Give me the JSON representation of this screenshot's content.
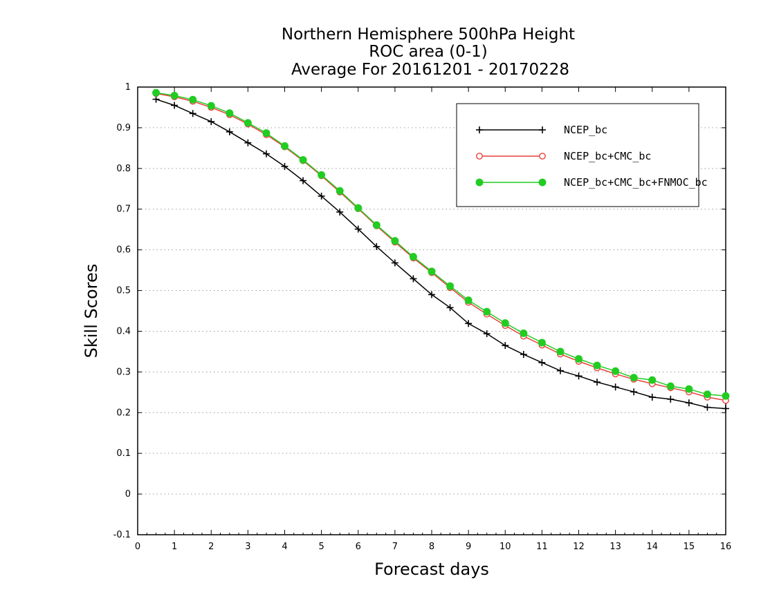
{
  "colors": {
    "background": "#ffffff",
    "axis": "#000000",
    "grid": "#9a9a9a"
  },
  "chart_data": {
    "type": "line",
    "title_lines": [
      "Northern Hemisphere 500hPa Height",
      "ROC area (0-1)",
      "Average For 20161201 - 20170228"
    ],
    "xlabel": "Forecast days",
    "ylabel": "Skill Scores",
    "xlim": [
      0,
      16
    ],
    "ylim": [
      -0.1,
      1
    ],
    "x_ticks": [
      0,
      1,
      2,
      3,
      4,
      5,
      6,
      7,
      8,
      9,
      10,
      11,
      12,
      13,
      14,
      15,
      16
    ],
    "y_ticks": [
      -0.1,
      0,
      0.1,
      0.2,
      0.3,
      0.4,
      0.5,
      0.6,
      0.7,
      0.8,
      0.9,
      1
    ],
    "y_tick_labels": [
      "-0.1",
      "0",
      "0.1",
      "0.2",
      "0.3",
      "0.4",
      "0.5",
      "0.6",
      "0.7",
      "0.8",
      "0.9",
      "1"
    ],
    "grid": "horizontal dotted",
    "legend_position": "top-right",
    "x": [
      0.5,
      1,
      1.5,
      2,
      2.5,
      3,
      3.5,
      4,
      4.5,
      5,
      5.5,
      6,
      6.5,
      7,
      7.5,
      8,
      8.5,
      9,
      9.5,
      10,
      10.5,
      11,
      11.5,
      12,
      12.5,
      13,
      13.5,
      14,
      14.5,
      15,
      15.5,
      16
    ],
    "series": [
      {
        "name": "NCEP_bc",
        "color": "#000000",
        "marker": "plus",
        "values": [
          0.97,
          0.955,
          0.935,
          0.915,
          0.89,
          0.863,
          0.836,
          0.805,
          0.77,
          0.732,
          0.693,
          0.651,
          0.608,
          0.568,
          0.529,
          0.49,
          0.458,
          0.419,
          0.394,
          0.365,
          0.343,
          0.323,
          0.303,
          0.29,
          0.275,
          0.263,
          0.251,
          0.238,
          0.233,
          0.224,
          0.213,
          0.21
        ]
      },
      {
        "name": "NCEP_bc+CMC_bc",
        "color": "#e8413c",
        "marker": "open-circle",
        "values": [
          0.984,
          0.976,
          0.965,
          0.95,
          0.932,
          0.909,
          0.883,
          0.853,
          0.819,
          0.782,
          0.742,
          0.701,
          0.659,
          0.619,
          0.58,
          0.544,
          0.507,
          0.471,
          0.442,
          0.414,
          0.388,
          0.366,
          0.344,
          0.326,
          0.31,
          0.295,
          0.282,
          0.271,
          0.261,
          0.251,
          0.238,
          0.23
        ]
      },
      {
        "name": "NCEP_bc+CMC_bc+FNMOC_bc",
        "color": "#22cc22",
        "marker": "filled-circle",
        "values": [
          0.986,
          0.979,
          0.969,
          0.954,
          0.936,
          0.912,
          0.887,
          0.855,
          0.821,
          0.784,
          0.745,
          0.703,
          0.661,
          0.622,
          0.583,
          0.547,
          0.511,
          0.476,
          0.448,
          0.42,
          0.395,
          0.372,
          0.35,
          0.332,
          0.316,
          0.302,
          0.286,
          0.28,
          0.265,
          0.258,
          0.245,
          0.241
        ]
      }
    ]
  }
}
